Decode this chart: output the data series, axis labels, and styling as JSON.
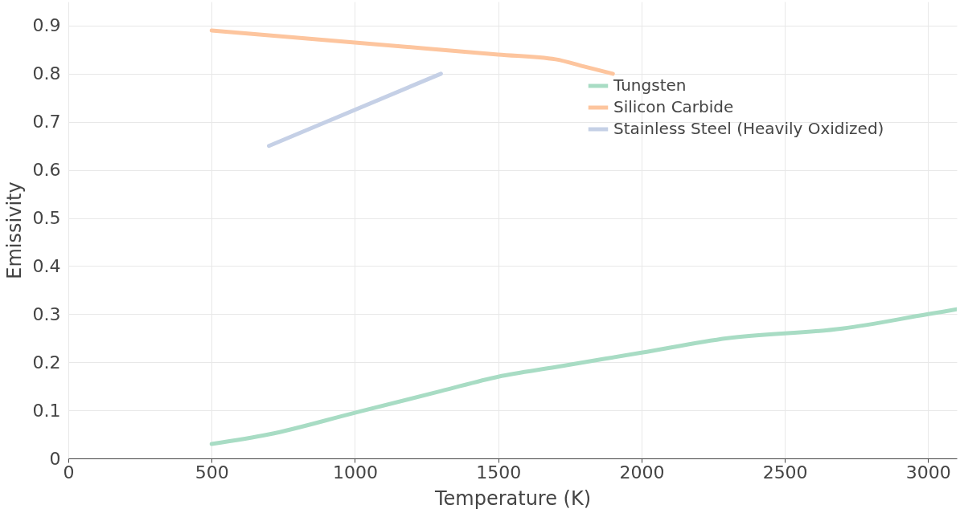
{
  "chart_data": {
    "type": "line",
    "xlabel": "Temperature (K)",
    "ylabel": "Emissivity",
    "xlim": [
      0,
      3100
    ],
    "ylim": [
      0,
      0.95
    ],
    "xticks": [
      0,
      500,
      1000,
      1500,
      2000,
      2500,
      3000
    ],
    "yticks": [
      0,
      0.1,
      0.2,
      0.3,
      0.4,
      0.5,
      0.6,
      0.7,
      0.8,
      0.9
    ],
    "grid": true,
    "legend": "top right",
    "series": [
      {
        "name": "Tungsten",
        "color": "#a8dcc4",
        "x": [
          500,
          700,
          1000,
          1300,
          1500,
          1700,
          2000,
          2300,
          2700,
          3000,
          3100
        ],
        "values": [
          0.03,
          0.05,
          0.095,
          0.14,
          0.17,
          0.19,
          0.22,
          0.25,
          0.27,
          0.3,
          0.31
        ]
      },
      {
        "name": "Silicon Carbide",
        "color": "#fdc59e",
        "x": [
          500,
          1000,
          1500,
          1700,
          1800,
          1900
        ],
        "values": [
          0.89,
          0.865,
          0.84,
          0.83,
          0.815,
          0.8
        ]
      },
      {
        "name": "Stainless Steel (Heavily Oxidized)",
        "color": "#c5d0e6",
        "x": [
          700,
          1300
        ],
        "values": [
          0.65,
          0.8
        ]
      }
    ]
  }
}
